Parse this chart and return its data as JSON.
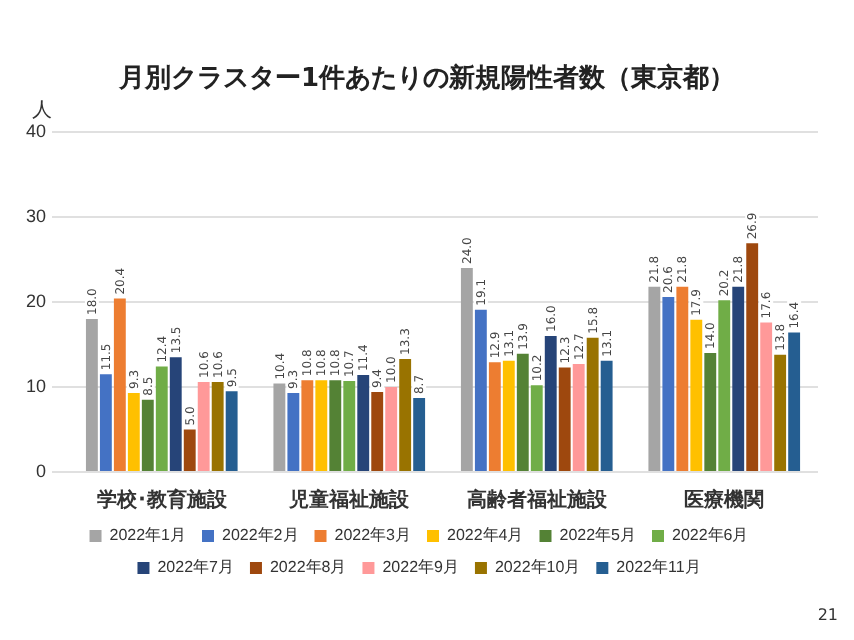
{
  "chart_data": {
    "type": "bar",
    "title": "月別クラスター1件あたりの新規陽性者数（東京都）",
    "ylabel": "人",
    "categories": [
      "学校･教育施設",
      "児童福祉施設",
      "高齢者福祉施設",
      "医療機関"
    ],
    "series": [
      {
        "name": "2022年1月",
        "color": "#a5a5a5",
        "values": [
          18.0,
          10.4,
          24.0,
          21.8
        ],
        "value_labels": [
          "18.0",
          "10.4",
          "24.0",
          "21.8"
        ]
      },
      {
        "name": "2022年2月",
        "color": "#4472c4",
        "values": [
          11.5,
          9.3,
          19.1,
          20.6
        ],
        "value_labels": [
          "11.5",
          "9.3",
          "19.1",
          "20.6"
        ]
      },
      {
        "name": "2022年3月",
        "color": "#ed7d31",
        "values": [
          20.4,
          10.8,
          12.9,
          21.8
        ],
        "value_labels": [
          "20.4",
          "10.8",
          "12.9",
          "21.8"
        ]
      },
      {
        "name": "2022年4月",
        "color": "#ffc000",
        "values": [
          9.3,
          10.8,
          13.1,
          17.9
        ],
        "value_labels": [
          "9.3",
          "10.8",
          "13.1",
          "17.9"
        ]
      },
      {
        "name": "2022年5月",
        "color": "#548235",
        "values": [
          8.5,
          10.8,
          13.9,
          14.0
        ],
        "value_labels": [
          "8.5",
          "10.8",
          "13.9",
          "14.0"
        ]
      },
      {
        "name": "2022年6月",
        "color": "#70ad47",
        "values": [
          12.4,
          10.7,
          10.2,
          20.2
        ],
        "value_labels": [
          "12.4",
          "10.7",
          "10.2",
          "20.2"
        ]
      },
      {
        "name": "2022年7月",
        "color": "#264478",
        "values": [
          13.5,
          11.4,
          16.0,
          21.8
        ],
        "value_labels": [
          "13.5",
          "11.4",
          "16.0",
          "21.8"
        ]
      },
      {
        "name": "2022年8月",
        "color": "#9e480e",
        "values": [
          5.0,
          9.4,
          12.3,
          26.9
        ],
        "value_labels": [
          "5.0",
          "9.4",
          "12.3",
          "26.9"
        ]
      },
      {
        "name": "2022年9月",
        "color": "#ff9999",
        "values": [
          10.6,
          10.0,
          12.7,
          17.6
        ],
        "value_labels": [
          "10.6",
          "10.0",
          "12.7",
          "17.6"
        ]
      },
      {
        "name": "2022年10月",
        "color": "#997300",
        "values": [
          10.6,
          13.3,
          15.8,
          13.8
        ],
        "value_labels": [
          "10.6",
          "13.3",
          "15.8",
          "13.8"
        ]
      },
      {
        "name": "2022年11月",
        "color": "#255e91",
        "values": [
          9.5,
          8.7,
          13.1,
          16.4
        ],
        "value_labels": [
          "9.5",
          "8.7",
          "13.1",
          "16.4"
        ]
      }
    ],
    "ylim": [
      0,
      40
    ],
    "yticks": [
      0,
      10,
      20,
      30,
      40
    ],
    "grid": "y",
    "legend": "bottom",
    "annotations": [
      "21"
    ]
  }
}
